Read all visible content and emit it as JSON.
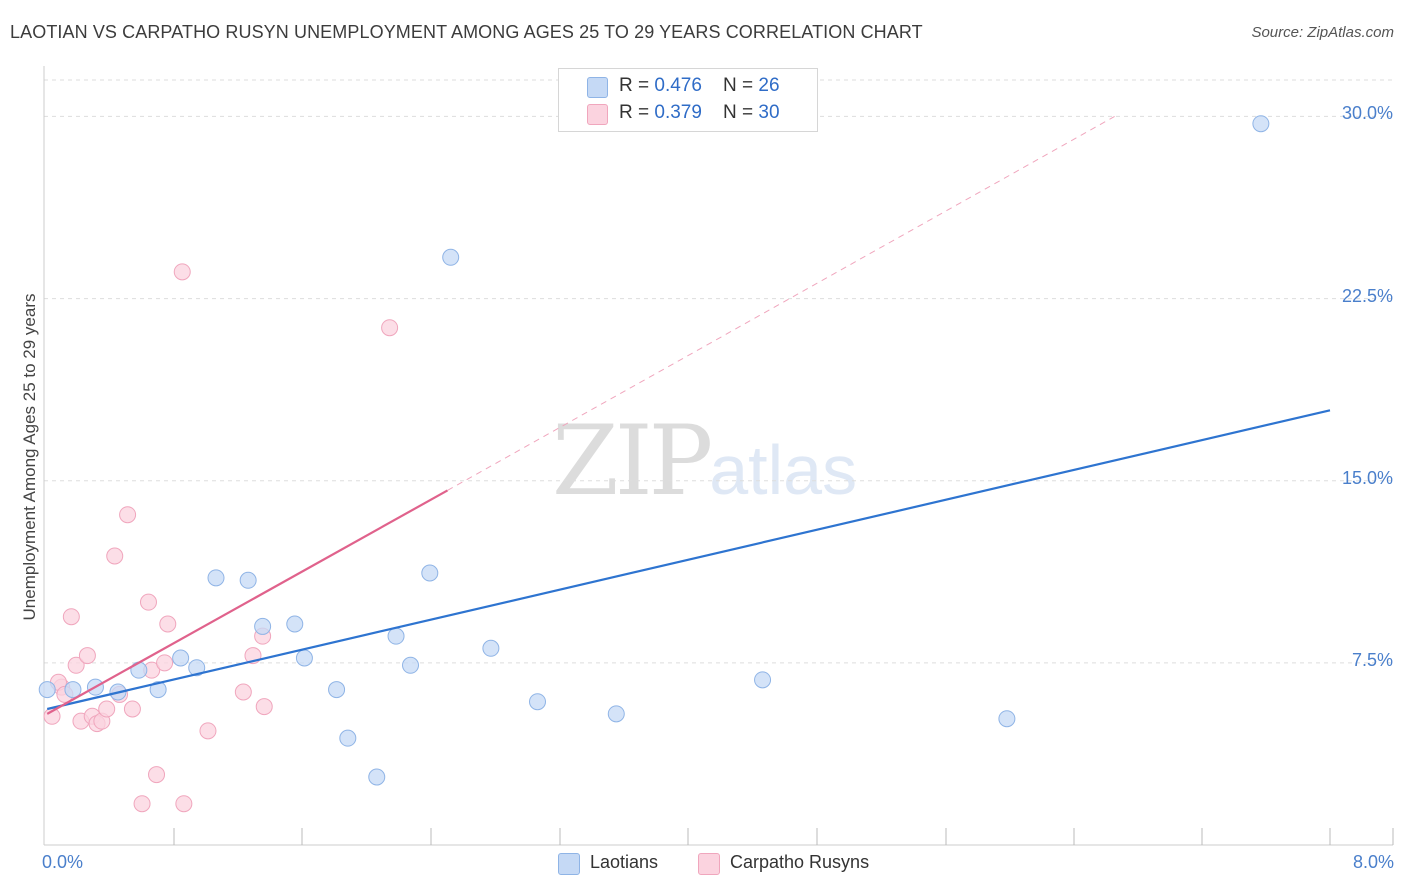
{
  "title": "LAOTIAN VS CARPATHO RUSYN UNEMPLOYMENT AMONG AGES 25 TO 29 YEARS CORRELATION CHART",
  "source": "Source: ZipAtlas.com",
  "watermark": {
    "zip": "ZIP",
    "atlas": "atlas"
  },
  "colors": {
    "laotian_fill": "#c5d9f5",
    "laotian_stroke": "#8fb4e6",
    "laotian_line": "#2e74d0",
    "carpatho_fill": "#fbd3df",
    "carpatho_stroke": "#f0a6bd",
    "carpatho_line": "#e0628c",
    "grid": "#dddddd",
    "tick_label": "#4a7fcb"
  },
  "legend": {
    "rows": [
      {
        "r_label": "R = ",
        "r_value": "0.476",
        "n_label": "N = ",
        "n_value": "26"
      },
      {
        "r_label": "R = ",
        "r_value": "0.379",
        "n_label": "N = ",
        "n_value": "30"
      }
    ],
    "series_names": [
      "Laotians",
      "Carpatho Rusyns"
    ]
  },
  "chart_data": {
    "type": "scatter",
    "title": "LAOTIAN VS CARPATHO RUSYN UNEMPLOYMENT AMONG AGES 25 TO 29 YEARS CORRELATION CHART",
    "xlabel": "",
    "ylabel": "Unemployment Among Ages 25 to 29 years",
    "xlim": [
      0,
      8
    ],
    "ylim": [
      0,
      31.5
    ],
    "x_tick_labels": [
      "0.0%",
      "8.0%"
    ],
    "y_ticks": [
      7.5,
      15.0,
      22.5,
      30.0
    ],
    "y_tick_labels": [
      "7.5%",
      "15.0%",
      "22.5%",
      "30.0%"
    ],
    "grid": true,
    "series": [
      {
        "name": "Laotians",
        "points": [
          [
            0.02,
            6.4
          ],
          [
            0.18,
            6.4
          ],
          [
            0.32,
            6.5
          ],
          [
            0.46,
            6.3
          ],
          [
            0.59,
            7.2
          ],
          [
            0.71,
            6.4
          ],
          [
            0.85,
            7.7
          ],
          [
            0.95,
            7.3
          ],
          [
            1.07,
            11.0
          ],
          [
            1.27,
            10.9
          ],
          [
            1.36,
            9.0
          ],
          [
            1.56,
            9.1
          ],
          [
            1.62,
            7.7
          ],
          [
            1.82,
            6.4
          ],
          [
            1.89,
            4.4
          ],
          [
            2.07,
            2.8
          ],
          [
            2.19,
            8.6
          ],
          [
            2.28,
            7.4
          ],
          [
            2.4,
            11.2
          ],
          [
            2.53,
            24.2
          ],
          [
            2.78,
            8.1
          ],
          [
            3.07,
            5.9
          ],
          [
            3.56,
            5.4
          ],
          [
            4.47,
            6.8
          ],
          [
            5.99,
            5.2
          ],
          [
            7.57,
            29.7
          ]
        ],
        "trend": {
          "x": [
            0.02,
            8.0
          ],
          "y": [
            5.6,
            17.9
          ]
        }
      },
      {
        "name": "Carpatho Rusyns",
        "points": [
          [
            0.05,
            5.3
          ],
          [
            0.11,
            6.5
          ],
          [
            0.17,
            9.4
          ],
          [
            0.2,
            7.4
          ],
          [
            0.23,
            5.1
          ],
          [
            0.27,
            7.8
          ],
          [
            0.3,
            5.3
          ],
          [
            0.33,
            5.0
          ],
          [
            0.36,
            5.1
          ],
          [
            0.39,
            5.6
          ],
          [
            0.44,
            11.9
          ],
          [
            0.47,
            6.2
          ],
          [
            0.52,
            13.6
          ],
          [
            0.55,
            5.6
          ],
          [
            0.61,
            1.7
          ],
          [
            0.65,
            10.0
          ],
          [
            0.67,
            7.2
          ],
          [
            0.7,
            2.9
          ],
          [
            0.75,
            7.5
          ],
          [
            0.77,
            9.1
          ],
          [
            0.86,
            23.6
          ],
          [
            0.87,
            1.7
          ],
          [
            1.02,
            4.7
          ],
          [
            1.24,
            6.3
          ],
          [
            1.3,
            7.8
          ],
          [
            1.36,
            8.6
          ],
          [
            1.37,
            5.7
          ],
          [
            2.15,
            21.3
          ],
          [
            0.09,
            6.7
          ],
          [
            0.13,
            6.2
          ]
        ],
        "trend_solid": {
          "x": [
            0.02,
            2.51
          ],
          "y": [
            5.4,
            14.6
          ]
        },
        "trend_dashed": {
          "x": [
            2.51,
            6.66
          ],
          "y": [
            14.6,
            30.0
          ]
        }
      }
    ]
  }
}
